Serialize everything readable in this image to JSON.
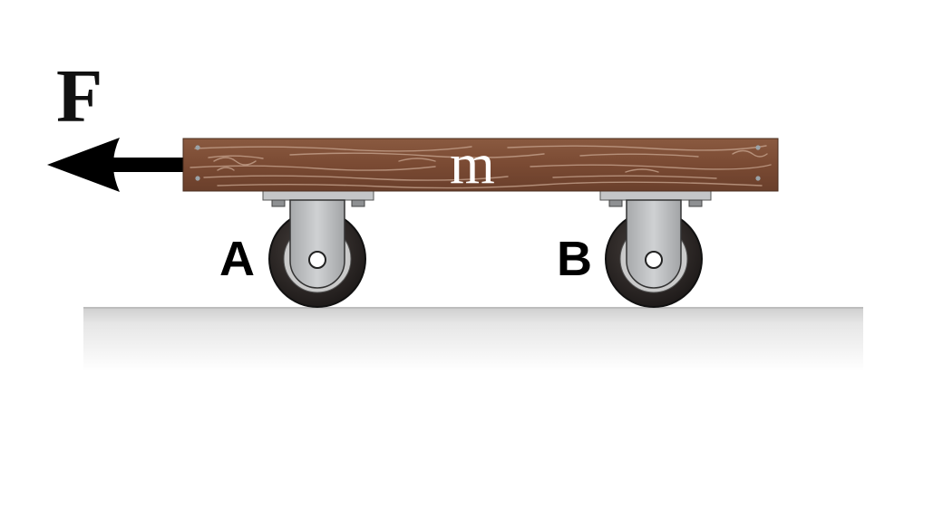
{
  "force": {
    "label": "F",
    "direction": "left",
    "color": "#000000"
  },
  "board": {
    "label": "m",
    "color": "#7a4a33",
    "label_color": "#ffffff"
  },
  "casters": [
    {
      "label": "A"
    },
    {
      "label": "B"
    }
  ],
  "colors": {
    "wheel": "#2b2624",
    "hub": "#c9c9c9",
    "bracket": "#b9bbbd",
    "ground": "#e2e2e2"
  }
}
